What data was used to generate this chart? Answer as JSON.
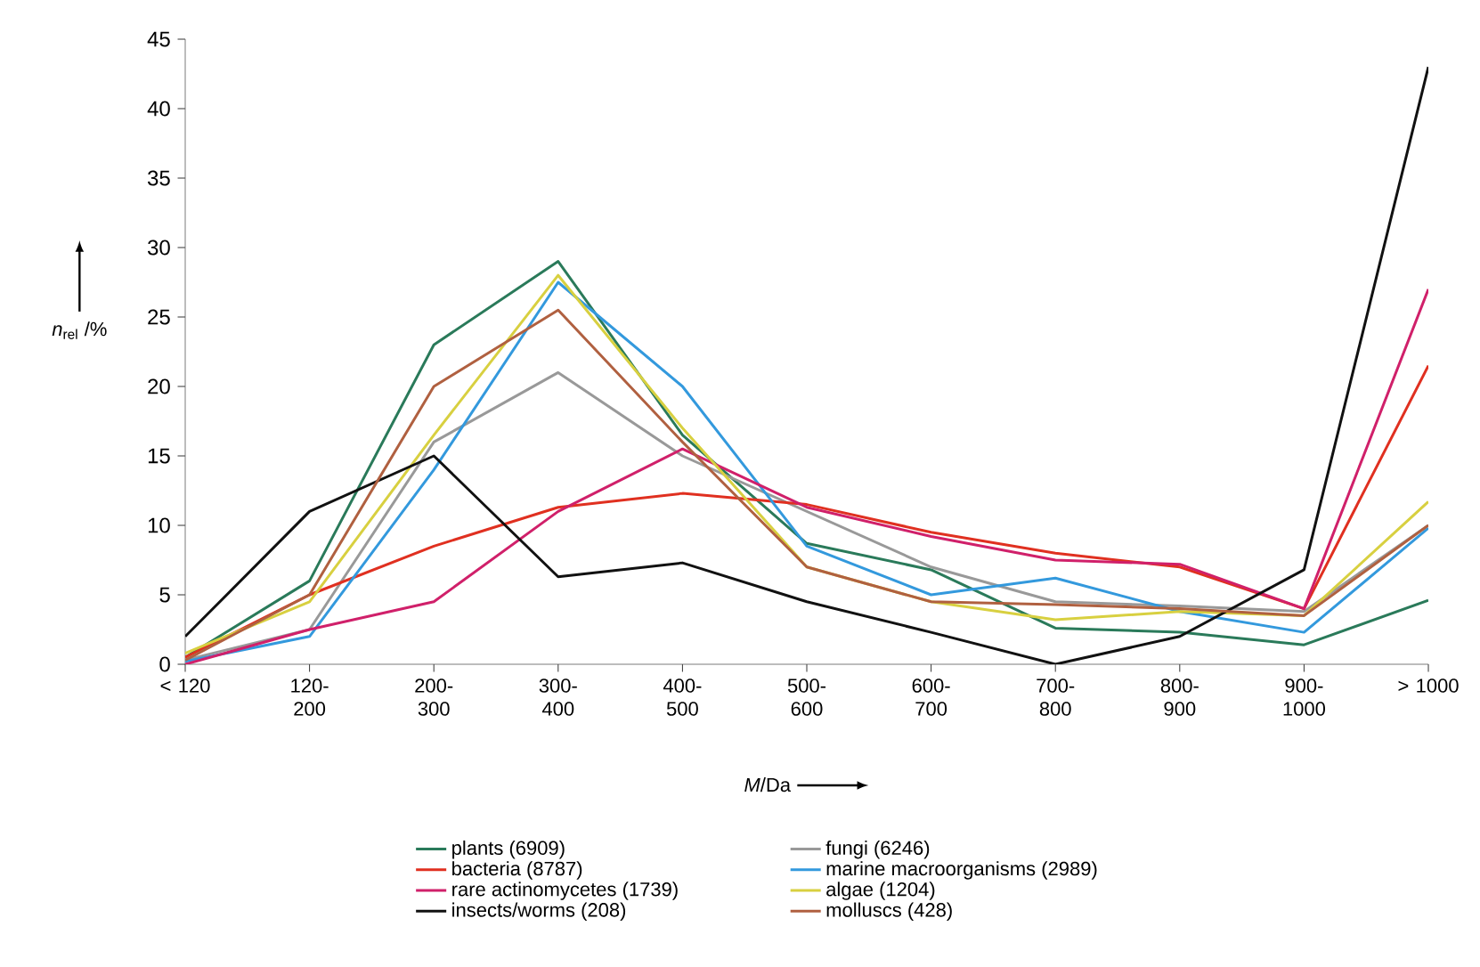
{
  "chart_data": {
    "type": "line",
    "xlabel": "*M*/Da",
    "ylabel": "*n*$_{rel}$ /%",
    "categories": [
      "< 120",
      "120-200",
      "200-300",
      "300-400",
      "400-500",
      "500-600",
      "600-700",
      "700-800",
      "800-900",
      "900-1000",
      "> 1000"
    ],
    "ylim": [
      0,
      45
    ],
    "yticks": [
      0,
      5,
      10,
      15,
      20,
      25,
      30,
      35,
      40,
      45
    ],
    "grid": false,
    "legend": "bottom",
    "marker": "none",
    "line_style": "solid",
    "series": [
      {
        "name": "plants (6909)",
        "color": "#2a7a5a",
        "values": [
          0.5,
          6,
          23,
          29,
          16.5,
          8.7,
          6.8,
          2.6,
          2.3,
          1.4,
          4.6
        ]
      },
      {
        "name": "fungi (6246)",
        "color": "#999999",
        "values": [
          0.3,
          2.5,
          16,
          21,
          15,
          11,
          7,
          4.5,
          4.2,
          3.8,
          10
        ]
      },
      {
        "name": "bacteria (8787)",
        "color": "#e03020",
        "values": [
          0.5,
          5,
          8.5,
          11.3,
          12.3,
          11.5,
          9.5,
          8,
          7,
          4,
          21.5
        ]
      },
      {
        "name": "marine macroorganisms (2989)",
        "color": "#3399dd",
        "values": [
          0.2,
          2,
          14,
          27.5,
          20,
          8.5,
          5,
          6.2,
          3.8,
          2.3,
          9.8
        ]
      },
      {
        "name": "rare actinomycetes (1739)",
        "color": "#d0206a",
        "values": [
          0,
          2.5,
          4.5,
          11,
          15.5,
          11.3,
          9.2,
          7.5,
          7.2,
          4,
          27
        ]
      },
      {
        "name": "algae (1204)",
        "color": "#d8d040",
        "values": [
          0.8,
          4.5,
          16.5,
          28,
          17,
          7,
          4.5,
          3.2,
          3.8,
          3.5,
          11.7
        ]
      },
      {
        "name": "insects/worms (208)",
        "color": "#111111",
        "values": [
          2,
          11,
          15,
          6.3,
          7.3,
          4.5,
          2.3,
          0,
          2,
          6.8,
          43
        ]
      },
      {
        "name": "molluscs (428)",
        "color": "#b06040",
        "values": [
          0.3,
          5,
          20,
          25.5,
          16,
          7,
          4.5,
          4.3,
          4,
          3.5,
          10
        ]
      }
    ]
  }
}
